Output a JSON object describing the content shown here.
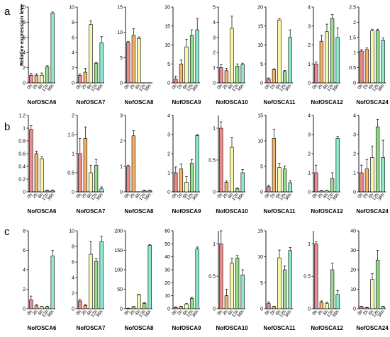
{
  "figure": {
    "row_labels": [
      "a",
      "b",
      "c"
    ],
    "ylabel": "Relative expression leve",
    "time_points": [
      "0h",
      "2h",
      "6h",
      "12h",
      "36h"
    ],
    "bar_colors": [
      "#ef8a8a",
      "#f6b26b",
      "#f7f7a7",
      "#94dc8a",
      "#8de8cf"
    ]
  },
  "chart_data": [
    {
      "type": "bar",
      "row": "a",
      "title": "NofOSCA6",
      "categories": [
        "0h",
        "2h",
        "6h",
        "12h",
        "36h"
      ],
      "values": [
        1.0,
        1.0,
        1.0,
        2.1,
        9.2
      ],
      "errors": [
        0.25,
        0.2,
        0.3,
        0.15,
        0.15
      ],
      "ylim": [
        0,
        10
      ],
      "yticks": [
        0,
        2,
        4,
        6,
        8,
        10
      ]
    },
    {
      "type": "bar",
      "row": "a",
      "title": "NofOSCA7",
      "categories": [
        "0h",
        "2h",
        "6h",
        "12h",
        "36h"
      ],
      "values": [
        1.0,
        1.4,
        7.7,
        2.6,
        5.3
      ],
      "errors": [
        0.2,
        0.5,
        0.5,
        0.1,
        0.8
      ],
      "ylim": [
        0,
        10
      ],
      "yticks": [
        0,
        2,
        4,
        6,
        8,
        10
      ]
    },
    {
      "type": "bar",
      "row": "a",
      "title": "NofOSCA8",
      "categories": [
        "0h",
        "2h",
        "6h",
        "12h",
        "36h"
      ],
      "values": [
        8.0,
        9.4,
        8.8,
        0,
        0
      ],
      "errors": [
        0.2,
        1.3,
        0.3,
        0,
        0
      ],
      "ylim": [
        0,
        15
      ],
      "yticks": [
        0,
        5,
        10,
        15
      ]
    },
    {
      "type": "bar",
      "row": "a",
      "title": "NofOSCA9",
      "categories": [
        "0h",
        "2h",
        "6h",
        "12h",
        "36h"
      ],
      "values": [
        1.0,
        5.0,
        9.5,
        12.5,
        14.0
      ],
      "errors": [
        0.8,
        1.0,
        2.0,
        1.5,
        3.0
      ],
      "ylim": [
        0,
        20
      ],
      "yticks": [
        0,
        5,
        10,
        15,
        20
      ]
    },
    {
      "type": "bar",
      "row": "a",
      "title": "NofOSCA10",
      "categories": [
        "0h",
        "2h",
        "6h",
        "12h",
        "36h"
      ],
      "values": [
        1.0,
        0.8,
        3.6,
        1.1,
        1.2
      ],
      "errors": [
        0.2,
        0.15,
        0.8,
        0.15,
        0.1
      ],
      "ylim": [
        0,
        5
      ],
      "yticks": [
        0,
        1,
        2,
        3,
        4,
        5
      ]
    },
    {
      "type": "bar",
      "row": "a",
      "title": "NofOSCA11",
      "categories": [
        "0h",
        "2h",
        "6h",
        "12h",
        "36h"
      ],
      "values": [
        1.0,
        3.5,
        16.6,
        3.0,
        12.0
      ],
      "errors": [
        0.3,
        0.2,
        0.3,
        0.3,
        2.0
      ],
      "ylim": [
        0,
        20
      ],
      "yticks": [
        0,
        5,
        10,
        15,
        20
      ]
    },
    {
      "type": "bar",
      "row": "a",
      "title": "NofOSCA12",
      "categories": [
        "0h",
        "2h",
        "6h",
        "12h",
        "36h"
      ],
      "values": [
        1.0,
        2.2,
        2.7,
        3.4,
        2.4
      ],
      "errors": [
        0.1,
        0.3,
        0.4,
        0.2,
        0.5
      ],
      "ylim": [
        0,
        4
      ],
      "yticks": [
        0,
        1,
        2,
        3,
        4
      ]
    },
    {
      "type": "bar",
      "row": "a",
      "title": "NofOSCA24",
      "categories": [
        "0h",
        "2h",
        "6h",
        "12h",
        "36h"
      ],
      "values": [
        1.05,
        1.1,
        1.72,
        1.72,
        1.4
      ],
      "errors": [
        0.05,
        0.05,
        0.05,
        0.05,
        0.08
      ],
      "ylim": [
        0,
        2.5
      ],
      "yticks": [
        0,
        0.5,
        1,
        1.5,
        2,
        2.5
      ]
    },
    {
      "type": "bar",
      "row": "b",
      "title": "NofOSCA6",
      "categories": [
        "0h",
        "2h",
        "6h",
        "12h",
        "36h"
      ],
      "values": [
        0.98,
        0.6,
        0.52,
        0.02,
        0.02
      ],
      "errors": [
        0.06,
        0.04,
        0.03,
        0.01,
        0.01
      ],
      "ylim": [
        0,
        1.2
      ],
      "yticks": [
        0,
        0.2,
        0.4,
        0.6,
        0.8,
        1.0,
        1.2
      ]
    },
    {
      "type": "bar",
      "row": "b",
      "title": "NofOSCA7",
      "categories": [
        "0h",
        "2h",
        "6h",
        "12h",
        "36h"
      ],
      "values": [
        1.0,
        1.4,
        0.5,
        0.7,
        0.08
      ],
      "errors": [
        0.4,
        0.3,
        0.2,
        0.15,
        0.05
      ],
      "ylim": [
        0,
        2
      ],
      "yticks": [
        0,
        0.5,
        1,
        1.5,
        2
      ]
    },
    {
      "type": "bar",
      "row": "b",
      "title": "NofOSCA8",
      "categories": [
        "0h",
        "2h",
        "6h",
        "12h",
        "36h"
      ],
      "values": [
        1.0,
        2.2,
        0,
        0.05,
        0.05
      ],
      "errors": [
        0.05,
        0.2,
        0,
        0.02,
        0.02
      ],
      "ylim": [
        0,
        3
      ],
      "yticks": [
        0,
        1,
        2,
        3
      ]
    },
    {
      "type": "bar",
      "row": "b",
      "title": "NofOSCA9",
      "categories": [
        "0h",
        "2h",
        "6h",
        "12h",
        "36h"
      ],
      "values": [
        1.0,
        1.2,
        0.5,
        1.5,
        2.95
      ],
      "errors": [
        0.3,
        0.25,
        0.3,
        0.2,
        0.05
      ],
      "ylim": [
        0,
        4
      ],
      "yticks": [
        0,
        1,
        2,
        3,
        4
      ]
    },
    {
      "type": "bar",
      "row": "b",
      "title": "NofOSCA10",
      "categories": [
        "0h",
        "2h",
        "6h",
        "12h",
        "36h"
      ],
      "values": [
        1.0,
        0.15,
        0.7,
        0.05,
        0.3
      ],
      "errors": [
        0.1,
        0.02,
        0.15,
        0.01,
        0.05
      ],
      "ylim": [
        0,
        1.2
      ],
      "yticks": [
        0,
        0.5,
        1
      ]
    },
    {
      "type": "bar",
      "row": "b",
      "title": "NofOSCA11",
      "categories": [
        "0h",
        "2h",
        "6h",
        "12h",
        "36h"
      ],
      "values": [
        1.0,
        10.5,
        4.8,
        4.5,
        1.8
      ],
      "errors": [
        0.3,
        1.8,
        0.8,
        0.6,
        0.4
      ],
      "ylim": [
        0,
        15
      ],
      "yticks": [
        0,
        5,
        10,
        15
      ]
    },
    {
      "type": "bar",
      "row": "b",
      "title": "NofOSCA12",
      "categories": [
        "0h",
        "2h",
        "6h",
        "12h",
        "36h"
      ],
      "values": [
        1.0,
        0.05,
        0.05,
        0.7,
        2.8
      ],
      "errors": [
        0.4,
        0.02,
        0.02,
        0.3,
        0.1
      ],
      "ylim": [
        0,
        4
      ],
      "yticks": [
        0,
        1,
        2,
        3,
        4
      ]
    },
    {
      "type": "bar",
      "row": "b",
      "title": "NofOSCA24",
      "categories": [
        "0h",
        "2h",
        "6h",
        "12h",
        "36h"
      ],
      "values": [
        1.0,
        1.2,
        1.8,
        3.4,
        1.8
      ],
      "errors": [
        0.4,
        0.5,
        0.6,
        0.4,
        0.9
      ],
      "ylim": [
        0,
        4
      ],
      "yticks": [
        0,
        1,
        2,
        3,
        4
      ]
    },
    {
      "type": "bar",
      "row": "c",
      "title": "NofOSCA6",
      "categories": [
        "0h",
        "2h",
        "6h",
        "12h",
        "36h"
      ],
      "values": [
        0.9,
        0.3,
        0.2,
        0.2,
        5.4
      ],
      "errors": [
        0.4,
        0.1,
        0.05,
        0.05,
        0.6
      ],
      "ylim": [
        0,
        8
      ],
      "yticks": [
        0,
        2,
        4,
        6,
        8
      ]
    },
    {
      "type": "bar",
      "row": "c",
      "title": "NofOSCA7",
      "categories": [
        "0h",
        "2h",
        "6h",
        "12h",
        "36h"
      ],
      "values": [
        1.0,
        0.4,
        7.0,
        6.1,
        8.6
      ],
      "errors": [
        0.2,
        0.1,
        1.6,
        0.3,
        0.7
      ],
      "ylim": [
        0,
        10
      ],
      "yticks": [
        0,
        2,
        4,
        6,
        8,
        10
      ]
    },
    {
      "type": "bar",
      "row": "c",
      "title": "NofOSCA8",
      "categories": [
        "0h",
        "2h",
        "6h",
        "12h",
        "36h"
      ],
      "values": [
        1.0,
        5.0,
        35.0,
        14.0,
        163.0
      ],
      "errors": [
        0.5,
        1.0,
        1.5,
        1.5,
        2.0
      ],
      "ylim": [
        0,
        200
      ],
      "yticks": [
        0,
        50,
        100,
        150,
        200
      ]
    },
    {
      "type": "bar",
      "row": "c",
      "title": "NofOSCA9",
      "categories": [
        "0h",
        "2h",
        "6h",
        "12h",
        "36h"
      ],
      "values": [
        1.0,
        1.5,
        3.5,
        8.0,
        46.0
      ],
      "errors": [
        0.3,
        0.4,
        0.5,
        0.8,
        1.5
      ],
      "ylim": [
        0,
        60
      ],
      "yticks": [
        0,
        10,
        20,
        30,
        40,
        50,
        60
      ]
    },
    {
      "type": "bar",
      "row": "c",
      "title": "NofOSCA10",
      "categories": [
        "0h",
        "2h",
        "6h",
        "12h",
        "36h"
      ],
      "values": [
        1.0,
        0.2,
        0.7,
        0.78,
        0.52
      ],
      "errors": [
        0.2,
        0.1,
        0.08,
        0.04,
        0.08
      ],
      "ylim": [
        0,
        1.2
      ],
      "yticks": [
        0,
        0.5,
        1
      ]
    },
    {
      "type": "bar",
      "row": "c",
      "title": "NofOSCA11",
      "categories": [
        "0h",
        "2h",
        "6h",
        "12h",
        "36h"
      ],
      "values": [
        1.0,
        0.4,
        9.8,
        7.5,
        11.2
      ],
      "errors": [
        0.3,
        0.1,
        1.5,
        0.7,
        0.6
      ],
      "ylim": [
        0,
        15
      ],
      "yticks": [
        0,
        5,
        10,
        15
      ]
    },
    {
      "type": "bar",
      "row": "c",
      "title": "NofOSCA12",
      "categories": [
        "0h",
        "2h",
        "6h",
        "12h",
        "36h"
      ],
      "values": [
        1.0,
        0.1,
        0.08,
        0.6,
        0.22
      ],
      "errors": [
        0.03,
        0.02,
        0.02,
        0.1,
        0.06
      ],
      "ylim": [
        0,
        1.2
      ],
      "yticks": [
        0,
        0.5,
        1
      ]
    },
    {
      "type": "bar",
      "row": "c",
      "title": "NofOSCA24",
      "categories": [
        "0h",
        "2h",
        "6h",
        "12h",
        "36h"
      ],
      "values": [
        1.0,
        0.5,
        15.0,
        25.0,
        1.0
      ],
      "errors": [
        0.3,
        0.2,
        3.0,
        5.0,
        0.3
      ],
      "ylim": [
        0,
        40
      ],
      "yticks": [
        0,
        10,
        20,
        30,
        40
      ]
    }
  ]
}
